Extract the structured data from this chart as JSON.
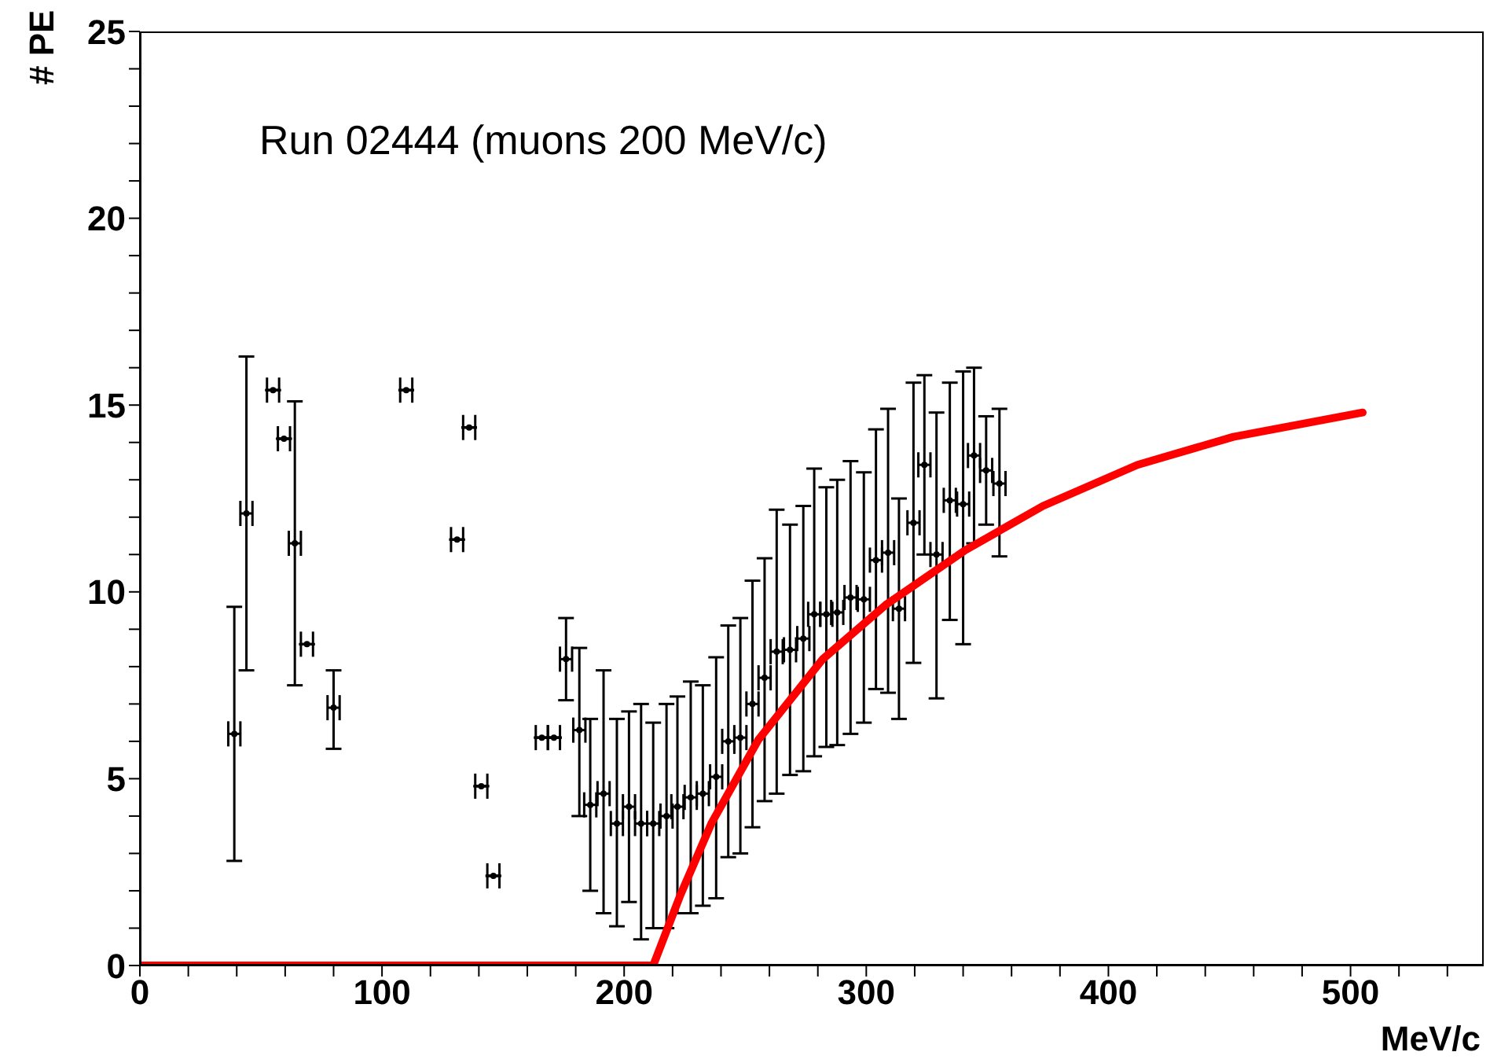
{
  "chart_data": {
    "type": "scatter",
    "xlabel": "MeV/c",
    "ylabel": "# PE",
    "annotations": [
      "Run 02444 (muons 200 MeV/c)"
    ],
    "xlim": [
      0,
      555
    ],
    "ylim": [
      0,
      25
    ],
    "xticks": [
      0,
      {
        "value": 20,
        "label": null
      },
      {
        "value": 40,
        "label": null
      },
      {
        "value": 60,
        "label": null
      },
      {
        "value": 80,
        "label": null
      },
      100,
      {
        "value": 120,
        "label": null
      },
      {
        "value": 140,
        "label": null
      },
      {
        "value": 160,
        "label": null
      },
      {
        "value": 180,
        "label": null
      },
      200,
      {
        "value": 220,
        "label": null
      },
      {
        "value": 240,
        "label": null
      },
      {
        "value": 260,
        "label": null
      },
      {
        "value": 280,
        "label": null
      },
      300,
      {
        "value": 320,
        "label": null
      },
      {
        "value": 340,
        "label": null
      },
      {
        "value": 360,
        "label": null
      },
      {
        "value": 380,
        "label": null
      },
      400,
      {
        "value": 420,
        "label": null
      },
      {
        "value": 440,
        "label": null
      },
      {
        "value": 460,
        "label": null
      },
      {
        "value": 480,
        "label": null
      },
      500,
      {
        "value": 520,
        "label": null
      },
      {
        "value": 540,
        "label": null
      }
    ],
    "yticks": [
      0,
      {
        "value": 1,
        "label": null
      },
      {
        "value": 2,
        "label": null
      },
      {
        "value": 3,
        "label": null
      },
      {
        "value": 4,
        "label": null
      },
      5,
      {
        "value": 6,
        "label": null
      },
      {
        "value": 7,
        "label": null
      },
      {
        "value": 8,
        "label": null
      },
      {
        "value": 9,
        "label": null
      },
      10,
      {
        "value": 11,
        "label": null
      },
      {
        "value": 12,
        "label": null
      },
      {
        "value": 13,
        "label": null
      },
      {
        "value": 14,
        "label": null
      },
      15,
      {
        "value": 16,
        "label": null
      },
      {
        "value": 17,
        "label": null
      },
      {
        "value": 18,
        "label": null
      },
      {
        "value": 19,
        "label": null
      },
      20,
      {
        "value": 21,
        "label": null
      },
      {
        "value": 22,
        "label": null
      },
      {
        "value": 23,
        "label": null
      },
      {
        "value": 24,
        "label": null
      },
      25
    ],
    "grid": false,
    "legend": false,
    "series": [
      {
        "type": "scatter",
        "color": "#000000",
        "x": [
          39,
          44,
          55,
          59.5,
          64,
          69,
          80,
          110,
          131,
          136,
          141,
          146,
          166,
          171,
          176,
          181.5,
          186,
          191.5,
          197,
          202,
          207,
          212,
          217.5,
          222,
          227.5,
          232.5,
          238,
          243,
          248,
          253,
          258,
          263,
          268.5,
          274,
          278.5,
          283.5,
          288,
          293.5,
          299,
          304,
          309,
          313.5,
          319.5,
          324,
          329,
          334.5,
          340,
          344.5,
          349.5,
          355
        ],
        "values": [
          6.2,
          12.1,
          15.4,
          14.1,
          11.3,
          8.6,
          6.9,
          15.4,
          11.4,
          14.4,
          4.8,
          2.4,
          6.1,
          6.1,
          8.2,
          6.3,
          4.3,
          4.6,
          3.8,
          4.25,
          3.8,
          3.8,
          4.0,
          4.25,
          4.5,
          4.6,
          5.05,
          6.0,
          6.1,
          7.0,
          7.7,
          8.4,
          8.45,
          8.75,
          9.4,
          9.4,
          9.45,
          9.85,
          9.8,
          10.85,
          11.05,
          9.55,
          11.85,
          13.4,
          11.0,
          12.45,
          12.35,
          13.65,
          13.25,
          12.9
        ],
        "errors": [
          [
            2.8,
            9.6
          ],
          [
            7.9,
            16.3
          ],
          null,
          null,
          [
            7.5,
            15.1
          ],
          null,
          [
            5.8,
            7.9
          ],
          null,
          null,
          null,
          null,
          null,
          null,
          null,
          [
            7.1,
            9.3
          ],
          [
            4.0,
            8.5
          ],
          [
            2.0,
            6.6
          ],
          [
            1.4,
            7.9
          ],
          [
            1.05,
            6.6
          ],
          [
            1.7,
            6.8
          ],
          [
            0.7,
            7.0
          ],
          [
            1.0,
            6.5
          ],
          [
            1.0,
            7.0
          ],
          [
            1.4,
            7.2
          ],
          [
            1.4,
            7.6
          ],
          [
            1.6,
            7.5
          ],
          [
            1.8,
            8.25
          ],
          [
            2.9,
            9.1
          ],
          [
            3.0,
            9.3
          ],
          [
            3.7,
            10.3
          ],
          [
            4.4,
            10.9
          ],
          [
            4.6,
            12.2
          ],
          [
            5.1,
            11.8
          ],
          [
            5.2,
            12.3
          ],
          [
            5.6,
            13.3
          ],
          [
            5.85,
            12.8
          ],
          [
            5.9,
            13.0
          ],
          [
            6.2,
            13.5
          ],
          [
            6.5,
            13.2
          ],
          [
            7.4,
            14.35
          ],
          [
            7.3,
            14.9
          ],
          [
            6.6,
            12.5
          ],
          [
            8.1,
            15.6
          ],
          [
            11.0,
            15.8
          ],
          [
            7.15,
            14.8
          ],
          [
            9.25,
            15.6
          ],
          [
            8.6,
            15.9
          ],
          [
            11.3,
            16.0
          ],
          [
            11.8,
            14.7
          ],
          [
            10.95,
            14.9
          ]
        ],
        "xerrors": [
          2.5,
          2.5,
          2.5,
          2.5,
          2.5,
          2.5,
          2.5,
          2.5,
          2.5,
          2.5,
          2.5,
          2.5,
          2.5,
          2.5,
          2.5,
          2.5,
          2.5,
          2.5,
          2.5,
          2.5,
          2.5,
          2.5,
          2.5,
          2.5,
          2.5,
          2.5,
          2.5,
          2.5,
          2.5,
          2.5,
          2.5,
          2.5,
          2.5,
          2.5,
          2.5,
          2.5,
          2.5,
          2.5,
          2.5,
          2.5,
          2.5,
          2.5,
          2.5,
          2.5,
          2.5,
          2.5,
          2.5,
          2.5,
          2.5,
          2.5
        ]
      },
      {
        "type": "line",
        "color": "#ff0000",
        "x": [
          0,
          212,
          223,
          236,
          255.5,
          282,
          308,
          340.5,
          373,
          412,
          451.6,
          505
        ],
        "values": [
          0,
          0,
          1.85,
          3.8,
          6.05,
          8.2,
          9.65,
          11.1,
          12.3,
          13.4,
          14.15,
          14.8
        ]
      }
    ]
  }
}
